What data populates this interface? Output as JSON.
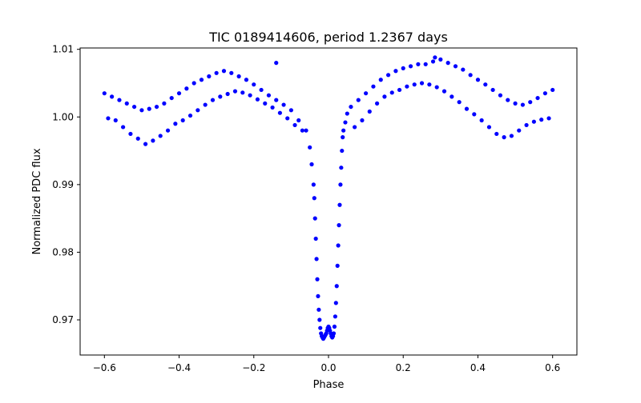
{
  "chart_data": {
    "type": "scatter",
    "title": "TIC 0189414606, period 1.2367 days",
    "xlabel": "Phase",
    "ylabel": "Normalized PDC flux",
    "xlim": [
      -0.665,
      0.665
    ],
    "ylim": [
      0.9648,
      1.0102
    ],
    "xticks": [
      -0.6,
      -0.4,
      -0.2,
      0.0,
      0.2,
      0.4,
      0.6
    ],
    "xtick_labels": [
      "−0.6",
      "−0.4",
      "−0.2",
      "0.0",
      "0.2",
      "0.4",
      "0.6"
    ],
    "yticks": [
      0.97,
      0.98,
      0.99,
      1.0,
      1.01
    ],
    "ytick_labels": [
      "0.97",
      "0.98",
      "0.99",
      "1.00",
      "1.01"
    ],
    "grid": false,
    "marker_color": "#0000ff",
    "series": [
      {
        "x": [
          -0.6,
          -0.58,
          -0.56,
          -0.54,
          -0.52,
          -0.5,
          -0.48,
          -0.46,
          -0.44,
          -0.42,
          -0.4,
          -0.38,
          -0.36,
          -0.34,
          -0.32,
          -0.3,
          -0.28,
          -0.26,
          -0.24,
          -0.22,
          -0.2,
          -0.18,
          -0.16,
          -0.14,
          -0.12,
          -0.1,
          -0.08,
          -0.06,
          -0.05,
          -0.045,
          -0.04,
          -0.038,
          -0.036,
          -0.034,
          -0.032,
          -0.03,
          -0.028,
          -0.026,
          -0.024,
          -0.022,
          -0.02,
          -0.018,
          -0.016,
          -0.014,
          -0.012,
          -0.01,
          -0.008,
          -0.006,
          -0.004,
          -0.002,
          0.0,
          0.002,
          0.004,
          0.006,
          0.008,
          0.01,
          0.012,
          0.014,
          0.016,
          0.018,
          0.02,
          0.022,
          0.024,
          0.026,
          0.028,
          0.03,
          0.032,
          0.034,
          0.036,
          0.038,
          0.04,
          0.045,
          0.05,
          0.06,
          0.08,
          0.1,
          0.12,
          0.14,
          0.16,
          0.18,
          0.2,
          0.22,
          0.24,
          0.26,
          0.28,
          0.3,
          0.32,
          0.34,
          0.36,
          0.38,
          0.4,
          0.42,
          0.44,
          0.46,
          0.48,
          0.5,
          0.52,
          0.54,
          0.56,
          0.58,
          0.6,
          -0.59,
          -0.57,
          -0.55,
          -0.53,
          -0.51,
          -0.49,
          -0.47,
          -0.45,
          -0.43,
          -0.41,
          -0.39,
          -0.37,
          -0.35,
          -0.33,
          -0.31,
          -0.29,
          -0.27,
          -0.25,
          -0.23,
          -0.21,
          -0.19,
          -0.17,
          -0.15,
          -0.13,
          -0.11,
          -0.09,
          -0.07,
          0.07,
          0.09,
          0.11,
          0.13,
          0.15,
          0.17,
          0.19,
          0.21,
          0.23,
          0.25,
          0.27,
          0.29,
          0.31,
          0.33,
          0.35,
          0.37,
          0.39,
          0.41,
          0.43,
          0.45,
          0.47,
          0.49,
          0.51,
          0.53,
          0.55,
          0.57,
          0.59,
          -0.14,
          0.285
        ],
        "y": [
          1.0035,
          1.003,
          1.0025,
          1.002,
          1.0015,
          1.001,
          1.0012,
          1.0015,
          1.002,
          1.0028,
          1.0035,
          1.0042,
          1.005,
          1.0055,
          1.006,
          1.0065,
          1.0068,
          1.0065,
          1.006,
          1.0055,
          1.0048,
          1.004,
          1.0032,
          1.0025,
          1.0018,
          1.001,
          0.9995,
          0.998,
          0.9955,
          0.993,
          0.99,
          0.988,
          0.985,
          0.982,
          0.979,
          0.976,
          0.9735,
          0.9715,
          0.97,
          0.9688,
          0.968,
          0.9676,
          0.9674,
          0.9672,
          0.9674,
          0.9676,
          0.9678,
          0.968,
          0.9684,
          0.9688,
          0.969,
          0.9688,
          0.9684,
          0.968,
          0.9676,
          0.9674,
          0.9676,
          0.968,
          0.969,
          0.9705,
          0.9725,
          0.975,
          0.978,
          0.981,
          0.984,
          0.987,
          0.99,
          0.9925,
          0.995,
          0.997,
          0.998,
          0.9992,
          1.0005,
          1.0015,
          1.0025,
          1.0035,
          1.0045,
          1.0055,
          1.0062,
          1.0068,
          1.0072,
          1.0075,
          1.0078,
          1.0078,
          1.0082,
          1.0085,
          1.008,
          1.0075,
          1.007,
          1.0062,
          1.0055,
          1.0048,
          1.004,
          1.0032,
          1.0025,
          1.002,
          1.0018,
          1.0022,
          1.0028,
          1.0035,
          1.004,
          0.9998,
          0.9995,
          0.9985,
          0.9975,
          0.9968,
          0.996,
          0.9965,
          0.9972,
          0.998,
          0.999,
          0.9995,
          1.0002,
          1.001,
          1.0018,
          1.0025,
          1.003,
          1.0034,
          1.0038,
          1.0036,
          1.0032,
          1.0026,
          1.002,
          1.0014,
          1.0006,
          0.9998,
          0.9988,
          0.998,
          0.9985,
          0.9995,
          1.0008,
          1.002,
          1.003,
          1.0036,
          1.004,
          1.0045,
          1.0048,
          1.005,
          1.0048,
          1.0044,
          1.0038,
          1.003,
          1.0022,
          1.0012,
          1.0004,
          0.9995,
          0.9985,
          0.9975,
          0.997,
          0.9972,
          0.998,
          0.9988,
          0.9993,
          0.9996,
          0.9998,
          1.008,
          1.0088
        ]
      }
    ]
  }
}
